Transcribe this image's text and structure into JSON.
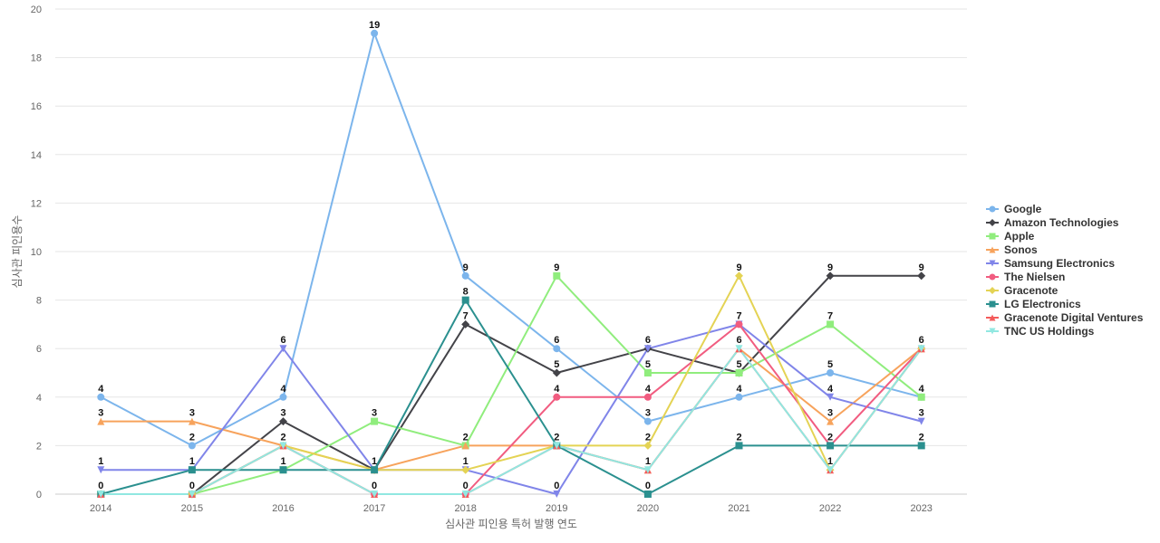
{
  "chart_data": {
    "type": "line",
    "title": "",
    "xlabel": "심사관 피인용 특허 발행 연도",
    "ylabel": "심사관 피인용수",
    "ylim": [
      0,
      20
    ],
    "yticks": [
      0,
      2,
      4,
      6,
      8,
      10,
      12,
      14,
      16,
      18,
      20
    ],
    "categories": [
      "2014",
      "2015",
      "2016",
      "2017",
      "2018",
      "2019",
      "2020",
      "2021",
      "2022",
      "2023"
    ],
    "grid": true,
    "legend_position": "right",
    "series": [
      {
        "name": "Google",
        "color": "#7cb5ec",
        "marker": "circle",
        "values": [
          4,
          2,
          4,
          19,
          9,
          6,
          3,
          4,
          5,
          4
        ]
      },
      {
        "name": "Amazon Technologies",
        "color": "#434348",
        "marker": "diamond",
        "values": [
          0,
          0,
          3,
          1,
          7,
          5,
          6,
          5,
          9,
          9
        ]
      },
      {
        "name": "Apple",
        "color": "#90ed7d",
        "marker": "square",
        "values": [
          0,
          0,
          1,
          3,
          2,
          9,
          5,
          5,
          7,
          4
        ]
      },
      {
        "name": "Sonos",
        "color": "#f7a35c",
        "marker": "triangle",
        "values": [
          3,
          3,
          2,
          1,
          2,
          2,
          1,
          6,
          3,
          6
        ]
      },
      {
        "name": "Samsung Electronics",
        "color": "#8085e9",
        "marker": "triangle-down",
        "values": [
          1,
          1,
          6,
          1,
          1,
          0,
          6,
          7,
          4,
          3
        ]
      },
      {
        "name": "The Nielsen",
        "color": "#f15c80",
        "marker": "circle",
        "values": [
          0,
          0,
          2,
          0,
          0,
          4,
          4,
          7,
          2,
          6
        ]
      },
      {
        "name": "Gracenote",
        "color": "#e4d354",
        "marker": "diamond",
        "values": [
          0,
          0,
          2,
          1,
          1,
          2,
          2,
          9,
          1,
          6
        ]
      },
      {
        "name": "LG Electronics",
        "color": "#2b908f",
        "marker": "square",
        "values": [
          0,
          1,
          1,
          1,
          8,
          2,
          0,
          2,
          2,
          2
        ]
      },
      {
        "name": "Gracenote Digital Ventures",
        "color": "#f45b5b",
        "marker": "triangle",
        "values": [
          0,
          0,
          2,
          0,
          0,
          2,
          1,
          6,
          1,
          6
        ]
      },
      {
        "name": "TNC US Holdings",
        "color": "#91e8e1",
        "marker": "triangle-down",
        "values": [
          0,
          0,
          2,
          0,
          0,
          2,
          1,
          6,
          1,
          6
        ]
      }
    ],
    "data_labels": [
      {
        "category": "2014",
        "value": 4,
        "text": "4"
      },
      {
        "category": "2014",
        "value": 3,
        "text": "3"
      },
      {
        "category": "2014",
        "value": 1,
        "text": "1"
      },
      {
        "category": "2014",
        "value": 0,
        "text": "0"
      },
      {
        "category": "2015",
        "value": 3,
        "text": "3"
      },
      {
        "category": "2015",
        "value": 2,
        "text": "2"
      },
      {
        "category": "2015",
        "value": 1,
        "text": "1"
      },
      {
        "category": "2015",
        "value": 0,
        "text": "0"
      },
      {
        "category": "2016",
        "value": 6,
        "text": "6"
      },
      {
        "category": "2016",
        "value": 4,
        "text": "4"
      },
      {
        "category": "2016",
        "value": 3,
        "text": "3"
      },
      {
        "category": "2016",
        "value": 2,
        "text": "2"
      },
      {
        "category": "2016",
        "value": 1,
        "text": "1"
      },
      {
        "category": "2017",
        "value": 19,
        "text": "19"
      },
      {
        "category": "2017",
        "value": 3,
        "text": "3"
      },
      {
        "category": "2017",
        "value": 1,
        "text": "1"
      },
      {
        "category": "2017",
        "value": 0,
        "text": "0"
      },
      {
        "category": "2018",
        "value": 9,
        "text": "9"
      },
      {
        "category": "2018",
        "value": 8,
        "text": "8"
      },
      {
        "category": "2018",
        "value": 7,
        "text": "7"
      },
      {
        "category": "2018",
        "value": 2,
        "text": "2"
      },
      {
        "category": "2018",
        "value": 1,
        "text": "1"
      },
      {
        "category": "2018",
        "value": 0,
        "text": "0"
      },
      {
        "category": "2019",
        "value": 9,
        "text": "9"
      },
      {
        "category": "2019",
        "value": 6,
        "text": "6"
      },
      {
        "category": "2019",
        "value": 5,
        "text": "5"
      },
      {
        "category": "2019",
        "value": 4,
        "text": "4"
      },
      {
        "category": "2019",
        "value": 2,
        "text": "2"
      },
      {
        "category": "2019",
        "value": 0,
        "text": "0"
      },
      {
        "category": "2020",
        "value": 6,
        "text": "6"
      },
      {
        "category": "2020",
        "value": 5,
        "text": "5"
      },
      {
        "category": "2020",
        "value": 4,
        "text": "4"
      },
      {
        "category": "2020",
        "value": 3,
        "text": "3"
      },
      {
        "category": "2020",
        "value": 2,
        "text": "2"
      },
      {
        "category": "2020",
        "value": 1,
        "text": "1"
      },
      {
        "category": "2020",
        "value": 0,
        "text": "0"
      },
      {
        "category": "2021",
        "value": 9,
        "text": "9"
      },
      {
        "category": "2021",
        "value": 7,
        "text": "7"
      },
      {
        "category": "2021",
        "value": 6,
        "text": "6"
      },
      {
        "category": "2021",
        "value": 5,
        "text": "5"
      },
      {
        "category": "2021",
        "value": 4,
        "text": "4"
      },
      {
        "category": "2021",
        "value": 2,
        "text": "2"
      },
      {
        "category": "2022",
        "value": 9,
        "text": "9"
      },
      {
        "category": "2022",
        "value": 7,
        "text": "7"
      },
      {
        "category": "2022",
        "value": 5,
        "text": "5"
      },
      {
        "category": "2022",
        "value": 4,
        "text": "4"
      },
      {
        "category": "2022",
        "value": 3,
        "text": "3"
      },
      {
        "category": "2022",
        "value": 2,
        "text": "2"
      },
      {
        "category": "2022",
        "value": 1,
        "text": "1"
      },
      {
        "category": "2023",
        "value": 9,
        "text": "9"
      },
      {
        "category": "2023",
        "value": 6,
        "text": "6"
      },
      {
        "category": "2023",
        "value": 4,
        "text": "4"
      },
      {
        "category": "2023",
        "value": 3,
        "text": "3"
      },
      {
        "category": "2023",
        "value": 2,
        "text": "2"
      }
    ]
  }
}
